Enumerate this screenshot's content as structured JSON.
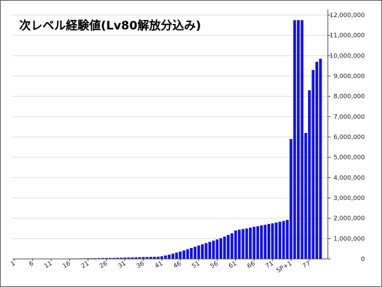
{
  "chart_data": {
    "type": "bar",
    "title": "次レベル経験値(Lv80解放分込み)",
    "categories": [
      "1",
      null,
      null,
      null,
      null,
      "6",
      null,
      null,
      null,
      null,
      "11",
      null,
      null,
      null,
      null,
      "16",
      null,
      null,
      null,
      null,
      "21",
      null,
      null,
      null,
      null,
      "26",
      null,
      null,
      null,
      null,
      "31",
      null,
      null,
      null,
      null,
      "36",
      null,
      null,
      null,
      null,
      "41",
      null,
      null,
      null,
      null,
      "46",
      null,
      null,
      null,
      null,
      "51",
      null,
      null,
      null,
      null,
      "56",
      null,
      null,
      null,
      null,
      "61",
      null,
      null,
      null,
      null,
      "66",
      null,
      null,
      null,
      null,
      "71",
      null,
      null,
      null,
      null,
      "SP+1",
      null,
      null,
      null,
      null,
      "77",
      null,
      null,
      null
    ],
    "values": [
      500,
      1000,
      1500,
      2000,
      2500,
      3000,
      3500,
      4000,
      4500,
      5000,
      8000,
      10000,
      12000,
      14000,
      16000,
      18000,
      20000,
      22000,
      24000,
      25000,
      30000,
      33000,
      36000,
      39000,
      42000,
      45000,
      48000,
      51000,
      55000,
      60000,
      65000,
      70000,
      75000,
      80000,
      85000,
      90000,
      95000,
      100000,
      105000,
      110000,
      130000,
      170000,
      210000,
      260000,
      310000,
      360000,
      420000,
      480000,
      540000,
      600000,
      660000,
      720000,
      780000,
      840000,
      900000,
      960000,
      1020000,
      1100000,
      1180000,
      1260000,
      1400000,
      1440000,
      1470000,
      1500000,
      1540000,
      1580000,
      1610000,
      1650000,
      1680000,
      1720000,
      1750000,
      1790000,
      1830000,
      1870000,
      1920000,
      5900000,
      11750000,
      11750000,
      11750000,
      6200000,
      8300000,
      9300000,
      9700000,
      9850000
    ],
    "color": "#1414d8",
    "ylim": [
      0,
      12000000
    ],
    "yticks": [
      {
        "value": 0,
        "label": "0"
      },
      {
        "value": 1000000,
        "label": "1,000,000"
      },
      {
        "value": 2000000,
        "label": "2,000,000"
      },
      {
        "value": 3000000,
        "label": "3,000,000"
      },
      {
        "value": 4000000,
        "label": "4,000,000"
      },
      {
        "value": 5000000,
        "label": "5,000,000"
      },
      {
        "value": 6000000,
        "label": "6,000,000"
      },
      {
        "value": 7000000,
        "label": "7,000,000"
      },
      {
        "value": 8000000,
        "label": "8,000,000"
      },
      {
        "value": 9000000,
        "label": "9,000,000"
      },
      {
        "value": 10000000,
        "label": "10,000,000"
      },
      {
        "value": 11000000,
        "label": "11,000,000"
      },
      {
        "value": 12000000,
        "label": "12,000,000"
      }
    ],
    "grid": true
  }
}
